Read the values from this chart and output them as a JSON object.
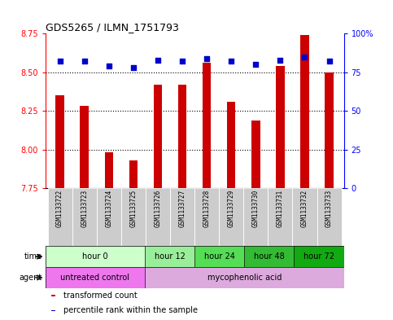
{
  "title": "GDS5265 / ILMN_1751793",
  "samples": [
    "GSM1133722",
    "GSM1133723",
    "GSM1133724",
    "GSM1133725",
    "GSM1133726",
    "GSM1133727",
    "GSM1133728",
    "GSM1133729",
    "GSM1133730",
    "GSM1133731",
    "GSM1133732",
    "GSM1133733"
  ],
  "bar_values": [
    8.35,
    8.28,
    7.98,
    7.93,
    8.42,
    8.42,
    8.56,
    8.31,
    8.19,
    8.54,
    8.74,
    8.5
  ],
  "percentile_values": [
    82,
    82,
    79,
    78,
    83,
    82,
    84,
    82,
    80,
    83,
    85,
    82
  ],
  "ylim_left": [
    7.75,
    8.75
  ],
  "ylim_right": [
    0,
    100
  ],
  "yticks_left": [
    7.75,
    8.0,
    8.25,
    8.5,
    8.75
  ],
  "yticks_right": [
    0,
    25,
    50,
    75,
    100
  ],
  "ytick_labels_right": [
    "0",
    "25",
    "50",
    "75",
    "100%"
  ],
  "bar_color": "#cc0000",
  "dot_color": "#0000cc",
  "bg_color": "#ffffff",
  "time_groups": [
    {
      "label": "hour 0",
      "start": 0,
      "end": 4,
      "color": "#ccffcc"
    },
    {
      "label": "hour 12",
      "start": 4,
      "end": 6,
      "color": "#99ee99"
    },
    {
      "label": "hour 24",
      "start": 6,
      "end": 8,
      "color": "#55dd55"
    },
    {
      "label": "hour 48",
      "start": 8,
      "end": 10,
      "color": "#33bb33"
    },
    {
      "label": "hour 72",
      "start": 10,
      "end": 12,
      "color": "#11aa11"
    }
  ],
  "agent_groups": [
    {
      "label": "untreated control",
      "start": 0,
      "end": 4,
      "color": "#ee77ee"
    },
    {
      "label": "mycophenolic acid",
      "start": 4,
      "end": 12,
      "color": "#ddaadd"
    }
  ],
  "legend_items": [
    {
      "label": "transformed count",
      "color": "#cc0000"
    },
    {
      "label": "percentile rank within the sample",
      "color": "#0000cc"
    }
  ],
  "time_label": "time",
  "agent_label": "agent",
  "sample_bg": "#cccccc",
  "bar_width": 0.35
}
